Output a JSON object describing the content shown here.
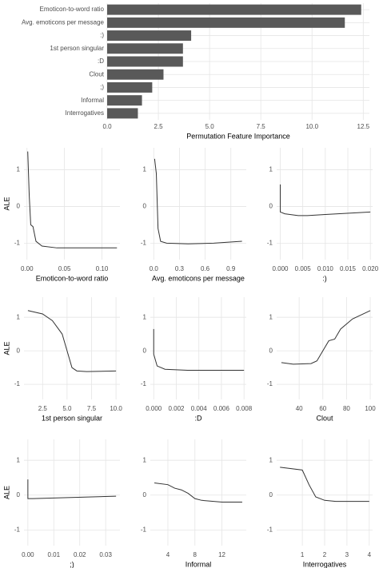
{
  "chart_data": [
    {
      "type": "bar",
      "orientation": "horizontal",
      "xlabel": "Permutation Feature Importance",
      "color": "#595959",
      "grid": true,
      "categories": [
        "Emoticon-to-word ratio",
        "Avg. emoticons per message",
        ":)",
        "1st person singular",
        ":D",
        "Clout",
        ";)",
        "Informal",
        "Interrogatives"
      ],
      "values": [
        12.4,
        11.6,
        4.1,
        3.7,
        3.7,
        2.75,
        2.2,
        1.7,
        1.5
      ],
      "xlim": [
        0,
        12.8
      ],
      "xticks": [
        {
          "value": 0,
          "label": "0.0"
        },
        2.5,
        {
          "value": 5,
          "label": "5.0"
        },
        7.5,
        {
          "value": 10,
          "label": "10.0"
        },
        12.5
      ]
    },
    {
      "type": "line",
      "xlabel": "Emoticon-to-word ratio",
      "ylabel": "ALE",
      "color": "#333333",
      "grid": true,
      "x": [
        0.001,
        0.003,
        0.005,
        0.008,
        0.012,
        0.02,
        0.04,
        0.12
      ],
      "values": [
        1.5,
        0.3,
        -0.5,
        -0.55,
        -0.95,
        -1.08,
        -1.13,
        -1.13
      ],
      "xlim": [
        -0.004,
        0.124
      ],
      "ylim": [
        -1.45,
        1.6
      ],
      "xticks": [
        {
          "value": 0,
          "label": "0.00"
        },
        0.05,
        {
          "value": 0.1,
          "label": "0.10"
        }
      ],
      "yticks": [
        -1,
        0,
        1
      ]
    },
    {
      "type": "line",
      "xlabel": "Avg. emoticons per message",
      "color": "#333333",
      "grid": true,
      "x": [
        0.01,
        0.03,
        0.05,
        0.08,
        0.15,
        0.4,
        0.7,
        1.03
      ],
      "values": [
        1.3,
        0.9,
        -0.6,
        -0.95,
        -1.0,
        -1.02,
        -1.0,
        -0.95
      ],
      "xlim": [
        -0.04,
        1.08
      ],
      "ylim": [
        -1.45,
        1.6
      ],
      "xticks": [
        {
          "value": 0,
          "label": "0.0"
        },
        0.3,
        0.6,
        0.9
      ],
      "yticks": [
        -1,
        0,
        1
      ]
    },
    {
      "type": "line",
      "xlabel": ":)",
      "color": "#333333",
      "grid": true,
      "x": [
        0,
        0,
        0.001,
        0.004,
        0.006,
        0.01,
        0.02
      ],
      "values": [
        0.6,
        -0.15,
        -0.2,
        -0.25,
        -0.25,
        -0.22,
        -0.15
      ],
      "xlim": [
        -0.0008,
        0.0205
      ],
      "ylim": [
        -1.45,
        1.6
      ],
      "xticks": [
        {
          "value": 0,
          "label": "0.000"
        },
        0.005,
        {
          "value": 0.01,
          "label": "0.010"
        },
        0.015,
        {
          "value": 0.02,
          "label": "0.020"
        }
      ],
      "yticks": [
        -1,
        0,
        1
      ]
    },
    {
      "type": "line",
      "xlabel": "1st person singular",
      "ylabel": "ALE",
      "color": "#333333",
      "grid": true,
      "x": [
        1,
        2.5,
        3.5,
        4.5,
        5,
        5.5,
        6,
        7,
        10
      ],
      "values": [
        1.2,
        1.1,
        0.9,
        0.5,
        0,
        -0.5,
        -0.6,
        -0.62,
        -0.6
      ],
      "xlim": [
        0.6,
        10.4
      ],
      "ylim": [
        -1.45,
        1.6
      ],
      "xticks": [
        2.5,
        {
          "value": 5,
          "label": "5.0"
        },
        7.5,
        {
          "value": 10,
          "label": "10.0"
        }
      ],
      "yticks": [
        -1,
        0,
        1
      ]
    },
    {
      "type": "line",
      "xlabel": ":D",
      "color": "#333333",
      "grid": true,
      "x": [
        0,
        0,
        0.0003,
        0.001,
        0.003,
        0.008
      ],
      "values": [
        0.65,
        -0.1,
        -0.45,
        -0.55,
        -0.58,
        -0.58
      ],
      "xlim": [
        -0.0003,
        0.0082
      ],
      "ylim": [
        -1.45,
        1.6
      ],
      "xticks": [
        {
          "value": 0,
          "label": "0.000"
        },
        0.002,
        0.004,
        0.006,
        0.008
      ],
      "yticks": [
        -1,
        0,
        1
      ]
    },
    {
      "type": "line",
      "xlabel": "Clout",
      "color": "#333333",
      "grid": true,
      "x": [
        25,
        35,
        50,
        55,
        60,
        65,
        70,
        75,
        85,
        100
      ],
      "values": [
        -0.35,
        -0.4,
        -0.38,
        -0.3,
        0,
        0.3,
        0.35,
        0.65,
        0.95,
        1.2
      ],
      "xlim": [
        21,
        102
      ],
      "ylim": [
        -1.45,
        1.6
      ],
      "xticks": [
        40,
        60,
        80,
        100
      ],
      "yticks": [
        -1,
        0,
        1
      ]
    },
    {
      "type": "line",
      "xlabel": ";)",
      "ylabel": "ALE",
      "color": "#333333",
      "grid": true,
      "x": [
        0,
        0,
        0.002,
        0.034
      ],
      "values": [
        0.45,
        -0.1,
        -0.1,
        -0.03
      ],
      "xlim": [
        -0.0015,
        0.0355
      ],
      "ylim": [
        -1.45,
        1.6
      ],
      "xticks": [
        {
          "value": 0,
          "label": "0.00"
        },
        0.01,
        0.02,
        0.03
      ],
      "yticks": [
        -1,
        0,
        1
      ]
    },
    {
      "type": "line",
      "xlabel": "Informal",
      "color": "#333333",
      "grid": true,
      "x": [
        2,
        4,
        5,
        6,
        7,
        8,
        9,
        12,
        15
      ],
      "values": [
        0.35,
        0.3,
        0.2,
        0.15,
        0.05,
        -0.1,
        -0.15,
        -0.2,
        -0.2
      ],
      "xlim": [
        1.4,
        15.6
      ],
      "ylim": [
        -1.45,
        1.6
      ],
      "xticks": [
        4,
        8,
        12
      ],
      "yticks": [
        -1,
        0,
        1
      ]
    },
    {
      "type": "line",
      "xlabel": "Interrogatives",
      "color": "#333333",
      "grid": true,
      "x": [
        0,
        1,
        1.3,
        1.6,
        2,
        2.5,
        4
      ],
      "values": [
        0.8,
        0.72,
        0.3,
        -0.05,
        -0.15,
        -0.18,
        -0.18
      ],
      "xlim": [
        -0.15,
        4.15
      ],
      "ylim": [
        -1.45,
        1.6
      ],
      "xticks": [
        1,
        2,
        3,
        4
      ],
      "yticks": [
        -1,
        0,
        1
      ]
    }
  ]
}
